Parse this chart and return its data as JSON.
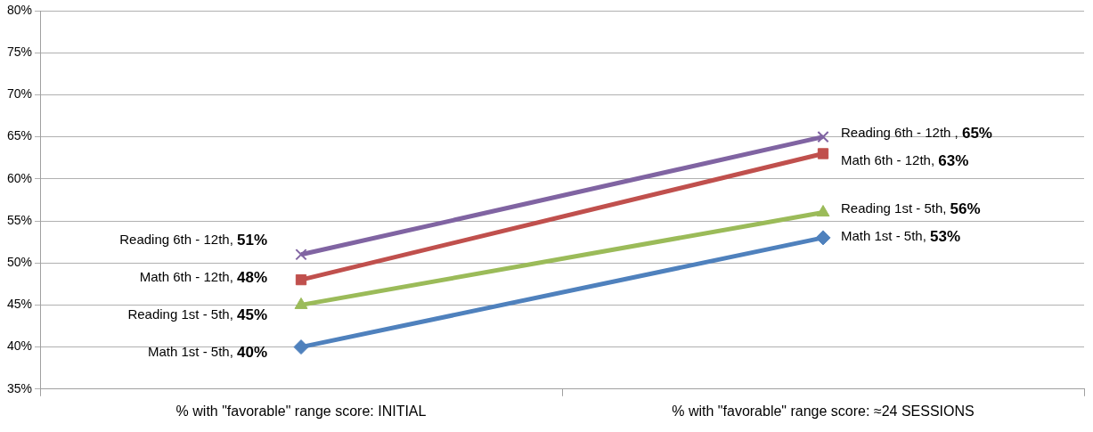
{
  "chart_data": {
    "type": "line",
    "categories": [
      "% with \"favorable\" range score: INITIAL",
      "% with \"favorable\" range score: ≈24 SESSIONS"
    ],
    "series": [
      {
        "color": "#4f81bd",
        "marker": "diamond",
        "values": [
          40,
          53
        ]
      },
      {
        "color": "#9bbb59",
        "marker": "triangle",
        "values": [
          45,
          56
        ]
      },
      {
        "color": "#c0504d",
        "marker": "square",
        "values": [
          48,
          63
        ]
      },
      {
        "color": "#8064a2",
        "marker": "cross",
        "values": [
          51,
          65
        ]
      }
    ],
    "annotations": [
      {
        "text": "Math 1st - 5th, 40%",
        "x": "% with \"favorable\" range score: INITIAL",
        "y": 40
      },
      {
        "text": "Reading 1st - 5th, 45%",
        "x": "% with \"favorable\" range score: INITIAL",
        "y": 45
      },
      {
        "text": "Math 6th - 12th, 48%",
        "x": "% with \"favorable\" range score: INITIAL",
        "y": 48
      },
      {
        "text": "Reading 6th - 12th, 51%",
        "x": "% with \"favorable\" range score: INITIAL",
        "y": 51
      },
      {
        "text": "Math 1st - 5th, 53%",
        "x": "% with \"favorable\" range score: ≈24 SESSIONS",
        "y": 53
      },
      {
        "text": "Reading 1st - 5th, 56%",
        "x": "% with \"favorable\" range score: ≈24 SESSIONS",
        "y": 56
      },
      {
        "text": "Math 6th - 12th, 63%",
        "x": "% with \"favorable\" range score: ≈24 SESSIONS",
        "y": 63
      },
      {
        "text": "Reading 6th - 12th , 65%",
        "x": "% with \"favorable\" range score: ≈24 SESSIONS",
        "y": 65
      }
    ],
    "ylim": [
      35,
      80
    ],
    "yticks": [
      {
        "value": 35,
        "label": "35%"
      },
      {
        "value": 40,
        "label": "40%"
      },
      {
        "value": 45,
        "label": "45%"
      },
      {
        "value": 50,
        "label": "50%"
      },
      {
        "value": 55,
        "label": "55%"
      },
      {
        "value": 60,
        "label": "60%"
      },
      {
        "value": 65,
        "label": "65%"
      },
      {
        "value": 70,
        "label": "70%"
      },
      {
        "value": 75,
        "label": "75%"
      },
      {
        "value": 80,
        "label": "80%"
      }
    ],
    "grid": "y",
    "legend": false
  }
}
